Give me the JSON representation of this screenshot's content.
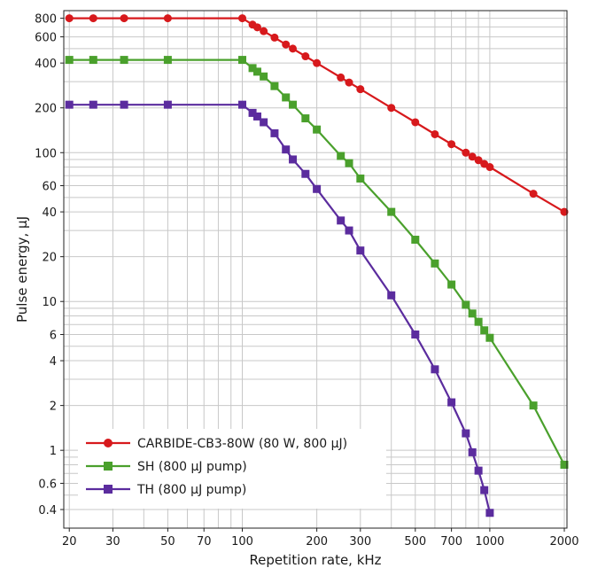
{
  "chart_data": {
    "type": "line",
    "xlabel": "Repetition rate, kHz",
    "ylabel": "Pulse energy, µJ",
    "x_scale": "log",
    "y_scale": "log",
    "xlim": [
      19,
      2050
    ],
    "ylim": [
      0.3,
      900
    ],
    "x_ticks": [
      20,
      30,
      50,
      70,
      100,
      200,
      300,
      500,
      700,
      1000,
      2000
    ],
    "x_tick_labels": [
      "20",
      "30",
      "50",
      "70",
      "100",
      "200",
      "300",
      "500",
      "700",
      "1000",
      "2000"
    ],
    "y_ticks": [
      0.4,
      0.6,
      1,
      2,
      4,
      6,
      10,
      20,
      40,
      60,
      100,
      200,
      400,
      600,
      800
    ],
    "y_tick_labels": [
      "0.4",
      "0.6",
      "1",
      "2",
      "4",
      "6",
      "10",
      "20",
      "40",
      "60",
      "100",
      "200",
      "400",
      "600",
      "800"
    ],
    "grid": true,
    "legend_position": "bottom-left",
    "series": [
      {
        "name": "CARBIDE-CB3-80W (80 W, 800 µJ)",
        "color": "#d7191c",
        "marker": "circle",
        "points": [
          {
            "x": 20,
            "y": 800
          },
          {
            "x": 25,
            "y": 800
          },
          {
            "x": 33.3,
            "y": 800
          },
          {
            "x": 50,
            "y": 800
          },
          {
            "x": 100,
            "y": 800
          },
          {
            "x": 110,
            "y": 725
          },
          {
            "x": 115,
            "y": 695
          },
          {
            "x": 122,
            "y": 655
          },
          {
            "x": 135,
            "y": 593
          },
          {
            "x": 150,
            "y": 533
          },
          {
            "x": 160,
            "y": 500
          },
          {
            "x": 180,
            "y": 444
          },
          {
            "x": 200,
            "y": 400
          },
          {
            "x": 250,
            "y": 320
          },
          {
            "x": 270,
            "y": 296
          },
          {
            "x": 300,
            "y": 267
          },
          {
            "x": 400,
            "y": 200
          },
          {
            "x": 500,
            "y": 160
          },
          {
            "x": 600,
            "y": 133
          },
          {
            "x": 700,
            "y": 114
          },
          {
            "x": 800,
            "y": 100
          },
          {
            "x": 850,
            "y": 94
          },
          {
            "x": 900,
            "y": 89
          },
          {
            "x": 950,
            "y": 84
          },
          {
            "x": 1000,
            "y": 80
          },
          {
            "x": 1500,
            "y": 53
          },
          {
            "x": 2000,
            "y": 40
          }
        ]
      },
      {
        "name": "SH (800 µJ pump)",
        "color": "#4aa02c",
        "marker": "square",
        "points": [
          {
            "x": 20,
            "y": 420
          },
          {
            "x": 25,
            "y": 420
          },
          {
            "x": 33.3,
            "y": 420
          },
          {
            "x": 50,
            "y": 420
          },
          {
            "x": 100,
            "y": 420
          },
          {
            "x": 110,
            "y": 370
          },
          {
            "x": 115,
            "y": 350
          },
          {
            "x": 122,
            "y": 325
          },
          {
            "x": 135,
            "y": 280
          },
          {
            "x": 150,
            "y": 235
          },
          {
            "x": 160,
            "y": 210
          },
          {
            "x": 180,
            "y": 170
          },
          {
            "x": 200,
            "y": 143
          },
          {
            "x": 250,
            "y": 95
          },
          {
            "x": 270,
            "y": 85
          },
          {
            "x": 300,
            "y": 67
          },
          {
            "x": 400,
            "y": 40
          },
          {
            "x": 500,
            "y": 26
          },
          {
            "x": 600,
            "y": 18
          },
          {
            "x": 700,
            "y": 13
          },
          {
            "x": 800,
            "y": 9.5
          },
          {
            "x": 850,
            "y": 8.3
          },
          {
            "x": 900,
            "y": 7.3
          },
          {
            "x": 950,
            "y": 6.4
          },
          {
            "x": 1000,
            "y": 5.7
          },
          {
            "x": 1500,
            "y": 2.0
          },
          {
            "x": 2000,
            "y": 0.8
          }
        ]
      },
      {
        "name": "TH (800 µJ pump)",
        "color": "#5b2c9e",
        "marker": "square",
        "points": [
          {
            "x": 20,
            "y": 210
          },
          {
            "x": 25,
            "y": 210
          },
          {
            "x": 33.3,
            "y": 210
          },
          {
            "x": 50,
            "y": 210
          },
          {
            "x": 100,
            "y": 210
          },
          {
            "x": 110,
            "y": 185
          },
          {
            "x": 115,
            "y": 175
          },
          {
            "x": 122,
            "y": 160
          },
          {
            "x": 135,
            "y": 135
          },
          {
            "x": 150,
            "y": 105
          },
          {
            "x": 160,
            "y": 90
          },
          {
            "x": 180,
            "y": 72
          },
          {
            "x": 200,
            "y": 57
          },
          {
            "x": 250,
            "y": 35
          },
          {
            "x": 270,
            "y": 30
          },
          {
            "x": 300,
            "y": 22
          },
          {
            "x": 400,
            "y": 11
          },
          {
            "x": 500,
            "y": 6.0
          },
          {
            "x": 600,
            "y": 3.5
          },
          {
            "x": 700,
            "y": 2.1
          },
          {
            "x": 800,
            "y": 1.3
          },
          {
            "x": 850,
            "y": 0.97
          },
          {
            "x": 900,
            "y": 0.73
          },
          {
            "x": 950,
            "y": 0.54
          },
          {
            "x": 1000,
            "y": 0.38
          }
        ]
      }
    ]
  }
}
